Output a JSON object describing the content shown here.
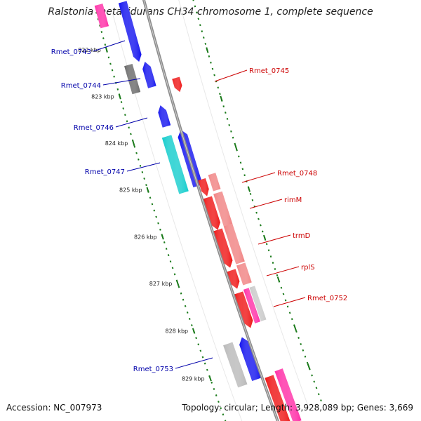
{
  "title": "Ralstonia metallidurans CH34 chromosome 1, complete sequence",
  "footer": {
    "accession": "Accession: NC_007973",
    "summary": "Topology: circular; Length: 3,928,089 bp; Genes: 3,669"
  },
  "colors": {
    "backbone": "#8c8c8c",
    "forward_label": "#cc0000",
    "reverse_label": "#0000aa",
    "tick": "#1a7a1a"
  },
  "kbp_ticks": [
    "822 kbp",
    "823 kbp",
    "824 kbp",
    "825 kbp",
    "826 kbp",
    "827 kbp",
    "828 kbp",
    "829 kbp"
  ],
  "genes": {
    "forward": [
      "Rmet_0745",
      "Rmet_0748",
      "rimM",
      "trmD",
      "rplS",
      "Rmet_0752"
    ],
    "reverse": [
      "Rmet_0743",
      "Rmet_0744",
      "Rmet_0746",
      "Rmet_0747",
      "Rmet_0753"
    ]
  }
}
